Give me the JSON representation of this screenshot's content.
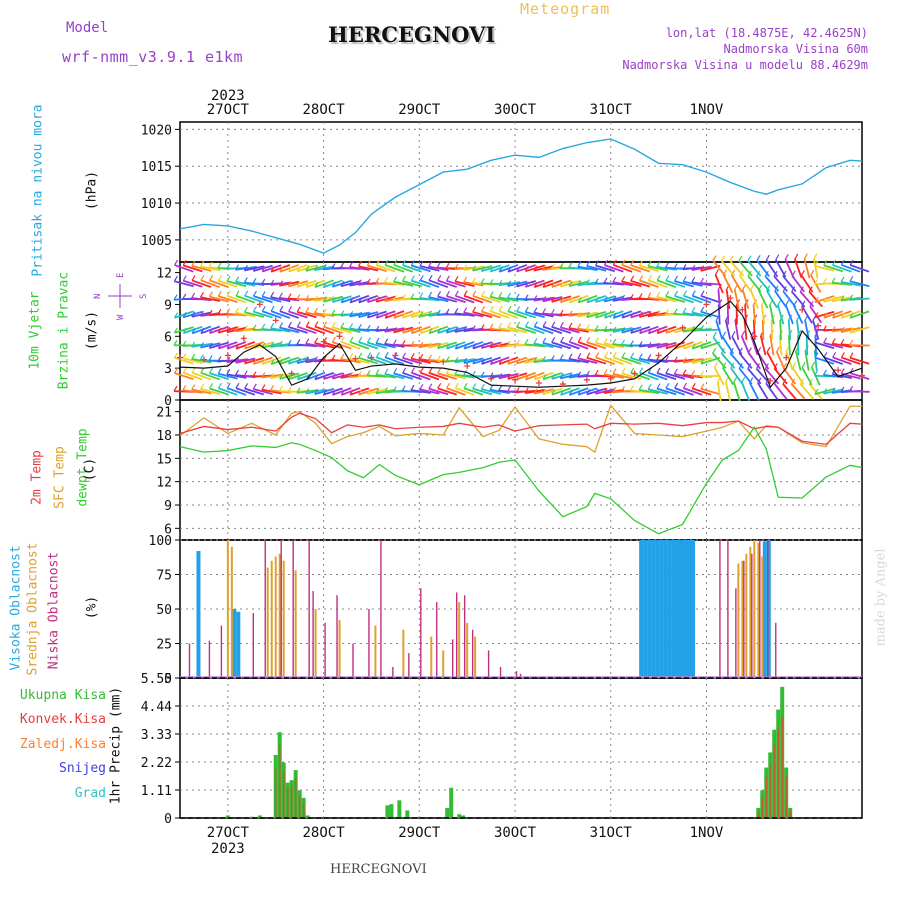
{
  "header": {
    "model_label": "Model",
    "model_name": "wrf-nmm_v3.9.1 e1km",
    "title": "HERCEGNOVI",
    "meteogram": "Meteogram",
    "lonlat": "lon,lat (18.4875E, 42.4625N)",
    "altitude": "Nadmorska Visina 60m",
    "altitude_model": "Nadmorska Visina u modelu 88.4629m"
  },
  "footer": {
    "station": "HERCEGNOVI",
    "credit": "made by Angel"
  },
  "axis_dates": {
    "year": "2023",
    "labels": [
      "27OCT",
      "28OCT",
      "29OCT",
      "30OCT",
      "31OCT",
      "1NOV"
    ]
  },
  "panel_labels": {
    "pressure": [
      "Pritisak na nivou mora",
      "(hPa)"
    ],
    "wind": [
      "10m Vjetar",
      "Brzina i Pravac",
      "(m/s)"
    ],
    "compass": [
      "N",
      "W",
      "E",
      "S"
    ],
    "temp": [
      "2m Temp",
      "SFC Temp",
      "dewpt Temp",
      "(C)"
    ],
    "cloud": [
      "Visoka Oblacnost",
      "Srednja Oblacnost",
      "Niska Oblacnost",
      "(%)"
    ],
    "precip_names": [
      "Ukupna Kisa",
      "Konvek.Kisa",
      "Zaledj.Kisa",
      "Snijeg",
      "Grad"
    ],
    "precip_unit": "1hr Precip (mm)"
  },
  "colors": {
    "pressure": "#29a8e0",
    "t2m": "#e84040",
    "sfc": "#e0a030",
    "dew": "#33cc33",
    "cloud_high": "#22a0e8",
    "cloud_mid": "#e0a030",
    "cloud_low": "#c03080",
    "precip_total": "#33bb33",
    "precip_conv": "#e04040",
    "precip_frozen": "#ff8030",
    "snow": "#4040e0",
    "hail": "#30c0c0",
    "model": "#9a40c8"
  },
  "chart_data": [
    {
      "type": "line",
      "title": "Pritisak na nivou mora",
      "ylabel": "(hPa)",
      "ylim": [
        1002,
        1021
      ],
      "yticks": [
        "1005",
        "1010",
        "1015",
        "1020"
      ],
      "x_hours": [
        0,
        6,
        12,
        18,
        24,
        30,
        36,
        40,
        44,
        48,
        54,
        60,
        66,
        72,
        78,
        84,
        90,
        96,
        102,
        108,
        114,
        120,
        126,
        132,
        138,
        144,
        147,
        150,
        156,
        162,
        168,
        171
      ],
      "series": [
        {
          "name": "Pritisak na nivou mora",
          "values": [
            1006.5,
            1007.1,
            1006.9,
            1006.2,
            1005.3,
            1004.4,
            1003.2,
            1004.3,
            1006.0,
            1008.5,
            1010.8,
            1012.5,
            1014.2,
            1014.6,
            1015.8,
            1016.5,
            1016.2,
            1017.4,
            1018.2,
            1018.7,
            1017.3,
            1015.4,
            1015.2,
            1014.2,
            1012.8,
            1011.6,
            1011.2,
            1011.8,
            1012.6,
            1014.8,
            1015.8,
            1015.7
          ]
        }
      ]
    },
    {
      "type": "line",
      "title": "10m Vjetar Brzina i Pravac",
      "ylabel": "(m/s)",
      "ylim": [
        0,
        13
      ],
      "yticks": [
        "0",
        "3",
        "6",
        "9",
        "12"
      ],
      "x_hours": [
        0,
        6,
        12,
        16,
        20,
        24,
        28,
        32,
        36,
        40,
        44,
        48,
        54,
        60,
        66,
        72,
        78,
        84,
        90,
        96,
        102,
        108,
        114,
        120,
        126,
        132,
        138,
        141,
        144,
        148,
        152,
        156,
        160,
        165,
        171
      ],
      "series": [
        {
          "name": "speed",
          "values": [
            3.1,
            3.0,
            3.2,
            4.5,
            5.2,
            4.1,
            1.4,
            2.0,
            4.0,
            5.3,
            2.8,
            3.2,
            3.4,
            3.1,
            3.0,
            2.6,
            1.4,
            1.3,
            1.2,
            1.3,
            1.4,
            1.6,
            2.0,
            3.5,
            5.5,
            7.8,
            9.3,
            8.0,
            5.5,
            1.2,
            3.0,
            6.5,
            4.8,
            2.2,
            3.0
          ]
        },
        {
          "name": "gust",
          "values": [
            4.0,
            3.8,
            4.2,
            5.8,
            9.0,
            7.5,
            2.5,
            3.8,
            5.5,
            6.0,
            3.9,
            4.0,
            4.2,
            3.8,
            3.6,
            3.2,
            2.0,
            1.9,
            1.6,
            1.5,
            1.9,
            2.0,
            2.5,
            4.2,
            6.8,
            9.0,
            9.6,
            8.5,
            6.0,
            1.8,
            4.0,
            8.5,
            7.0,
            2.8,
            2.3
          ]
        }
      ]
    },
    {
      "type": "line",
      "title": "2m Temp / SFC Temp / dewpt Temp",
      "ylabel": "(C)",
      "ylim": [
        4.5,
        22.5
      ],
      "yticks": [
        "6",
        "9",
        "12",
        "15",
        "18",
        "21"
      ],
      "x_hours": [
        0,
        6,
        12,
        18,
        24,
        28,
        30,
        34,
        38,
        42,
        46,
        50,
        54,
        60,
        66,
        70,
        76,
        80,
        84,
        90,
        96,
        102,
        104,
        108,
        114,
        120,
        126,
        132,
        136,
        140,
        144,
        147,
        150,
        156,
        162,
        168,
        171
      ],
      "series": [
        {
          "name": "2m Temp",
          "values": [
            18.2,
            19.1,
            18.7,
            19.0,
            18.5,
            20.3,
            20.8,
            20.1,
            18.3,
            19.3,
            19.0,
            19.3,
            18.8,
            19.0,
            19.1,
            19.5,
            19.0,
            19.3,
            18.5,
            19.2,
            19.3,
            19.4,
            18.8,
            19.5,
            19.4,
            19.5,
            19.2,
            19.6,
            19.6,
            19.8,
            18.8,
            19.1,
            19.0,
            17.2,
            16.8,
            19.5,
            19.4
          ]
        },
        {
          "name": "SFC Temp",
          "values": [
            17.9,
            20.2,
            18.2,
            19.5,
            18.0,
            20.8,
            21.0,
            19.5,
            16.9,
            17.8,
            18.3,
            19.1,
            17.9,
            18.2,
            18.0,
            21.5,
            17.8,
            18.6,
            21.6,
            17.5,
            16.8,
            16.5,
            15.8,
            21.8,
            18.2,
            18.0,
            17.8,
            18.5,
            19.0,
            19.8,
            17.5,
            19.2,
            19.0,
            17.0,
            16.5,
            21.7,
            21.7
          ]
        },
        {
          "name": "dewpt Temp",
          "values": [
            16.5,
            15.8,
            16.0,
            16.6,
            16.4,
            17.0,
            16.8,
            16.0,
            15.1,
            13.4,
            12.5,
            14.2,
            12.8,
            11.6,
            12.9,
            13.2,
            13.8,
            14.5,
            14.8,
            10.8,
            7.5,
            8.8,
            10.5,
            9.8,
            7.0,
            5.3,
            6.5,
            11.8,
            14.8,
            16.0,
            19.0,
            16.2,
            10.0,
            9.9,
            12.6,
            14.1,
            13.8
          ]
        }
      ]
    },
    {
      "type": "bar",
      "title": "Oblacnost",
      "ylabel": "(%)",
      "ylim": [
        0,
        100
      ],
      "yticks": [
        "0",
        "25",
        "50",
        "75",
        "100"
      ],
      "series": [
        {
          "name": "Visoka Oblacnost",
          "x_hours": [
            5,
            14,
            15,
            116,
            117,
            118,
            119,
            120,
            121,
            122,
            123,
            124,
            125,
            126,
            127,
            128,
            129,
            147,
            148
          ],
          "values": [
            92,
            50,
            48,
            100,
            100,
            100,
            100,
            100,
            100,
            100,
            100,
            100,
            100,
            100,
            100,
            100,
            100,
            99,
            100
          ]
        },
        {
          "name": "Srednja Oblacnost",
          "x_hours": [
            12,
            13,
            22,
            23,
            24,
            25,
            26,
            29,
            34,
            40,
            49,
            56,
            63,
            66,
            70,
            72,
            74,
            140,
            141,
            142,
            143,
            144,
            145,
            146
          ],
          "values": [
            100,
            95,
            80,
            85,
            88,
            90,
            85,
            78,
            50,
            42,
            38,
            35,
            30,
            20,
            55,
            40,
            30,
            83,
            85,
            90,
            95,
            100,
            98,
            88
          ]
        },
        {
          "name": "Niska Oblacnost",
          "x_hours": [
            2,
            7,
            10,
            18,
            21,
            25,
            28,
            32,
            33,
            36,
            39,
            43,
            47,
            50,
            53,
            57,
            60,
            64,
            68,
            69,
            71,
            73,
            77,
            80,
            84,
            85,
            89,
            135,
            137,
            139,
            141,
            143,
            145,
            147,
            149
          ],
          "values": [
            25,
            27,
            38,
            47,
            100,
            100,
            100,
            100,
            63,
            40,
            60,
            25,
            50,
            100,
            8,
            18,
            65,
            55,
            28,
            62,
            60,
            35,
            20,
            8,
            5,
            3,
            0,
            100,
            100,
            65,
            85,
            90,
            100,
            100,
            40
          ]
        }
      ]
    },
    {
      "type": "bar",
      "title": "1hr Precip",
      "ylabel": "1hr Precip (mm)",
      "ylim": [
        0,
        5.55
      ],
      "yticks": [
        "0",
        "1.11",
        "2.22",
        "3.33",
        "4.44",
        "5.55"
      ],
      "x_hours": [
        12,
        18,
        20,
        24,
        25,
        26,
        27,
        28,
        29,
        30,
        31,
        32,
        52,
        53,
        55,
        57,
        67,
        68,
        70,
        71,
        145,
        146,
        147,
        148,
        149,
        150,
        151,
        152,
        153
      ],
      "series": [
        {
          "name": "Ukupna Kisa",
          "values": [
            0.1,
            0.05,
            0.1,
            2.5,
            3.4,
            2.2,
            1.4,
            1.5,
            1.9,
            1.1,
            0.8,
            0.1,
            0.5,
            0.55,
            0.7,
            0.3,
            0.4,
            1.2,
            0.15,
            0.1,
            0.4,
            1.1,
            2.0,
            2.6,
            3.5,
            4.3,
            5.2,
            2.0,
            0.4
          ]
        },
        {
          "name": "Konvek.Kisa",
          "values": [
            0.05,
            0.0,
            0.05,
            2.0,
            2.9,
            1.9,
            1.2,
            1.3,
            1.6,
            0.9,
            0.6,
            0.05,
            0.0,
            0.0,
            0.0,
            0.0,
            0.0,
            0.0,
            0.05,
            0.05,
            0.2,
            0.8,
            1.6,
            2.1,
            2.9,
            3.6,
            4.0,
            1.7,
            0.3
          ]
        }
      ]
    }
  ]
}
